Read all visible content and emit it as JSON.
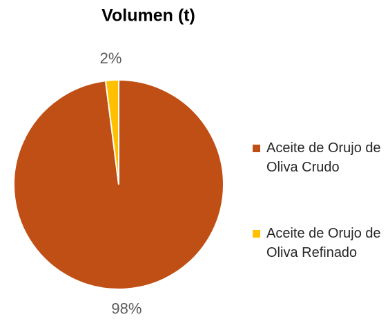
{
  "chart_data": {
    "type": "pie",
    "title": "Volumen (t)",
    "categories": [
      "Aceite de Orujo de Oliva Crudo",
      "Aceite de Orujo de Oliva Refinado"
    ],
    "values": [
      98,
      2
    ],
    "value_labels": [
      "98%",
      "2%"
    ],
    "colors": [
      "#c04f15",
      "#ffc000"
    ],
    "legend": "right"
  }
}
